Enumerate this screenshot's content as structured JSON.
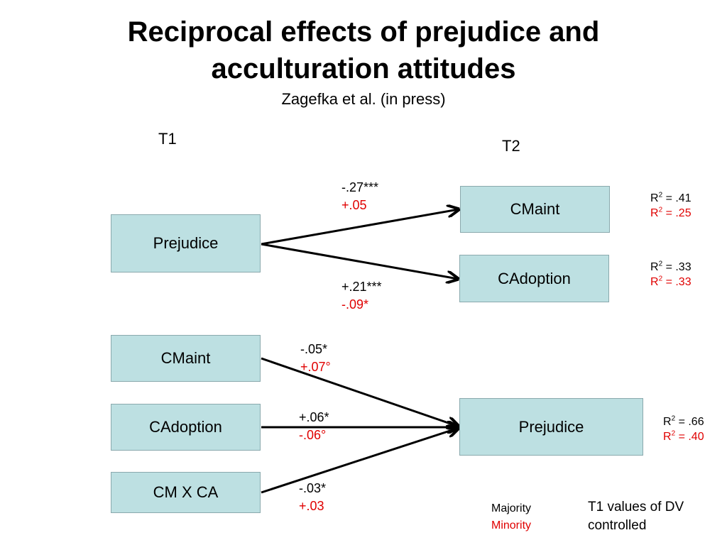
{
  "title_line1": "Reciprocal effects of prejudice and",
  "title_line2": "acculturation attitudes",
  "subtitle": "Zagefka et al. (in press)",
  "time_labels": {
    "t1": "T1",
    "t2": "T2"
  },
  "boxes": {
    "top_prejudice": "Prejudice",
    "top_cmaint": "CMaint",
    "top_cadoption": "CAdoption",
    "bottom_cmaint": "CMaint",
    "bottom_cadoption": "CAdoption",
    "bottom_cmxca": "CM X CA",
    "bottom_prejudice": "Prejudice"
  },
  "coefficients": {
    "prej_to_cmaint": {
      "majority": "-.27***",
      "minority": "+.05"
    },
    "prej_to_cadoption": {
      "majority": "+.21***",
      "minority": "-.09*"
    },
    "cmaint_to_prej": {
      "majority": "-.05*",
      "minority": "+.07°"
    },
    "cadoption_to_prej": {
      "majority": "+.06*",
      "minority": "-.06°"
    },
    "cmxca_to_prej": {
      "majority": "-.03*",
      "minority": "+.03"
    }
  },
  "r_squared": {
    "cmaint": {
      "majority": ".41",
      "minority": ".25"
    },
    "cadoption": {
      "majority": ".33",
      "minority": ".33"
    },
    "prejudice": {
      "majority": ".66",
      "minority": ".40"
    }
  },
  "r2_label": {
    "r": "R",
    "sup": "2",
    "eq": " = "
  },
  "legend": {
    "majority": "Majority",
    "minority": "Minority"
  },
  "note": {
    "line1": "T1 values of DV",
    "line2": "controlled"
  },
  "colors": {
    "box_fill": "#bde0e2",
    "box_border": "#8aa9ad",
    "majority_text": "#000000",
    "minority_text": "#e00000"
  }
}
